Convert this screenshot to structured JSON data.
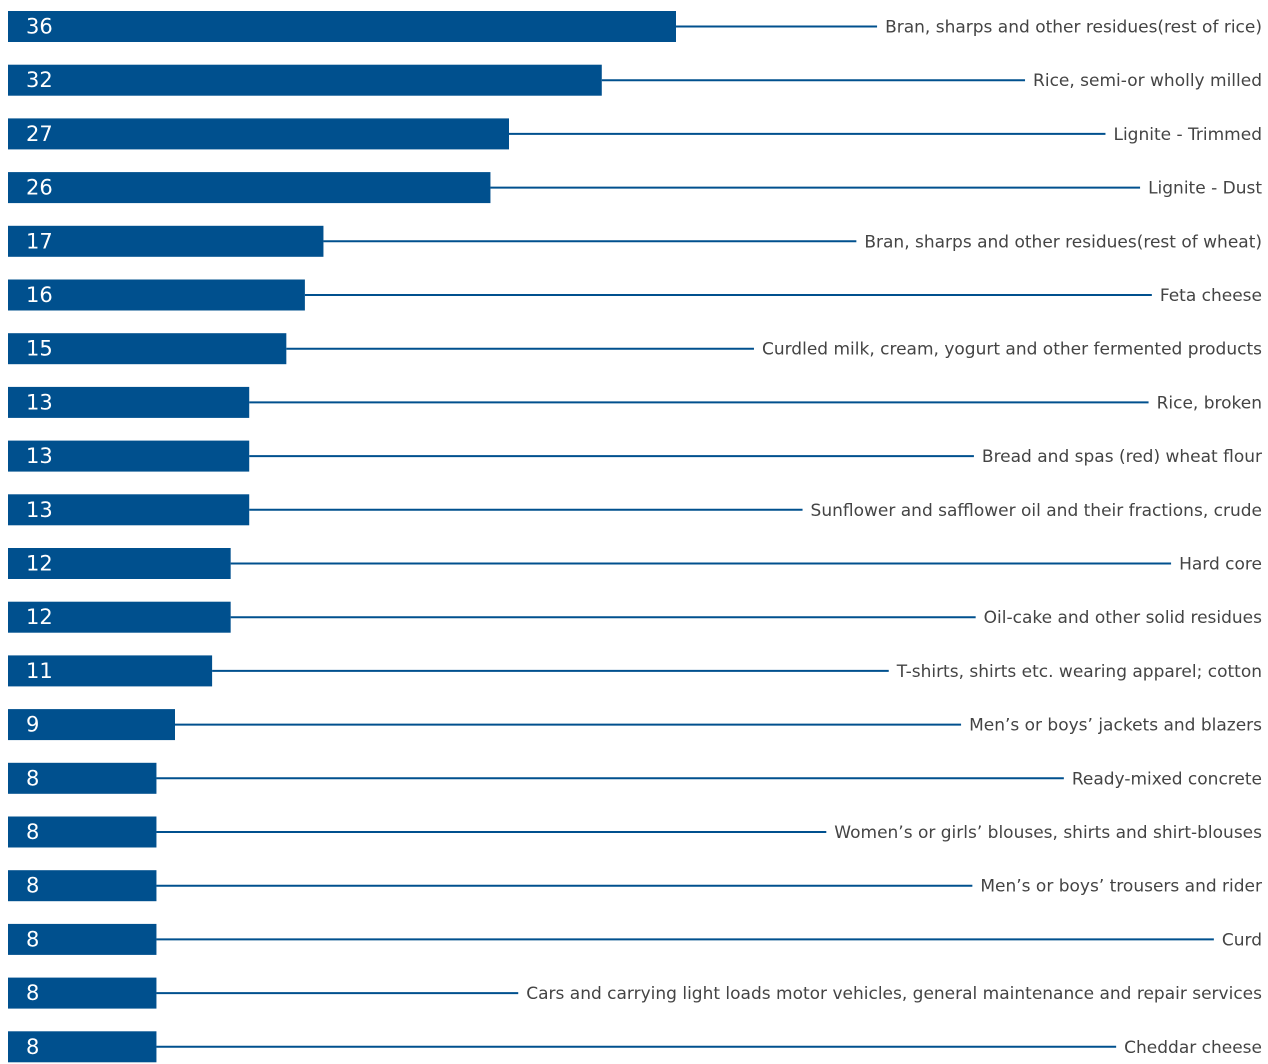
{
  "chart_data": {
    "type": "bar",
    "orientation": "horizontal",
    "bar_color": "#00508e",
    "label_color": "#444444",
    "grid": false,
    "xlim": [
      0,
      36
    ],
    "categories": [
      "Bran, sharps and other residues(rest of rice)",
      "Rice, semi-or wholly milled",
      "Lignite - Trimmed",
      "Lignite - Dust",
      "Bran, sharps and other residues(rest of wheat)",
      "Feta cheese",
      "Curdled milk, cream, yogurt and other fermented products",
      "Rice, broken",
      "Bread and spas (red) wheat flour",
      "Sunflower and safflower oil and their fractions, crude",
      "Hard core",
      "Oil-cake and other solid residues",
      "T-shirts, shirts etc. wearing apparel; cotton",
      "Men’s or boys’ jackets and blazers",
      "Ready-mixed concrete",
      "Women’s or girls’ blouses, shirts and shirt-blouses",
      "Men’s or boys’ trousers and rider",
      "Curd",
      "Cars and carrying light loads motor vehicles, general maintenance and repair services",
      "Cheddar cheese"
    ],
    "values": [
      36,
      32,
      27,
      26,
      17,
      16,
      15,
      13,
      13,
      13,
      12,
      12,
      11,
      9,
      8,
      8,
      8,
      8,
      8,
      8
    ],
    "value_labels": [
      "36",
      "32",
      "27",
      "26",
      "17",
      "16",
      "15",
      "13",
      "13",
      "13",
      "12",
      "12",
      "11",
      "9",
      "8",
      "8",
      "8",
      "8",
      "8",
      "8"
    ]
  }
}
